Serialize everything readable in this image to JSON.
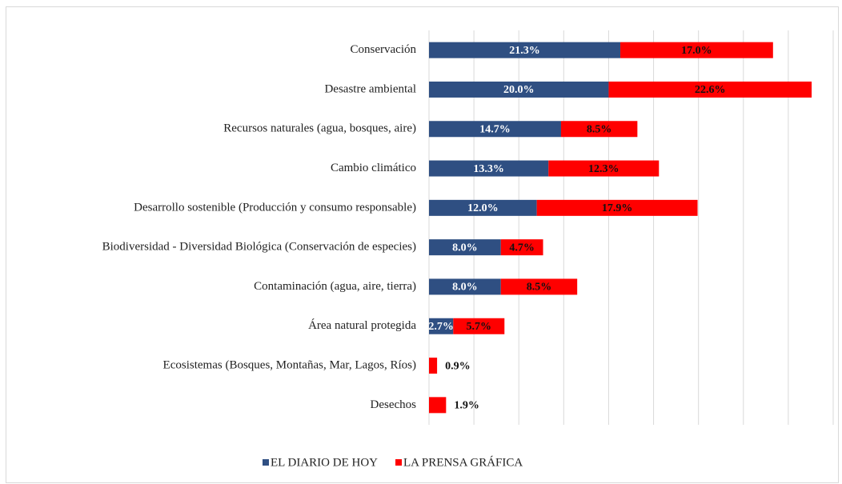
{
  "chart_data": {
    "type": "stacked-bar-horizontal",
    "categories": [
      "Conservación",
      "Desastre ambiental",
      "Recursos naturales (agua, bosques, aire)",
      "Cambio climático",
      "Desarrollo sostenible (Producción y consumo responsable)",
      "Biodiversidad - Diversidad Biológica (Conservación de especies)",
      "Contaminación (agua, aire, tierra)",
      "Área natural protegida",
      "Ecosistemas (Bosques, Montañas, Mar, Lagos, Ríos)",
      "Desechos"
    ],
    "series": [
      {
        "name": "EL DIARIO DE HOY",
        "color": "#2f4f82",
        "values": [
          21.3,
          20.0,
          14.7,
          13.3,
          12.0,
          8.0,
          8.0,
          2.7,
          null,
          null
        ],
        "value_labels": [
          "21.3%",
          "20.0%",
          "14.7%",
          "13.3%",
          "12.0%",
          "8.0%",
          "8.0%",
          "2.7%",
          null,
          null
        ]
      },
      {
        "name": "LA PRENSA GRÁFICA",
        "color": "#ff0000",
        "values": [
          17.0,
          22.6,
          8.5,
          12.3,
          17.9,
          4.7,
          8.5,
          5.7,
          0.9,
          1.9
        ],
        "value_labels": [
          "17.0%",
          "22.6%",
          "8.5%",
          "12.3%",
          "17.9%",
          "4.7%",
          "8.5%",
          "5.7%",
          "0.9%",
          "1.9%"
        ]
      }
    ],
    "xlim": [
      0,
      45
    ],
    "xticks": [
      0,
      5,
      10,
      15,
      20,
      25,
      30,
      35,
      40,
      45
    ],
    "grid": true,
    "legend": "bottom"
  }
}
